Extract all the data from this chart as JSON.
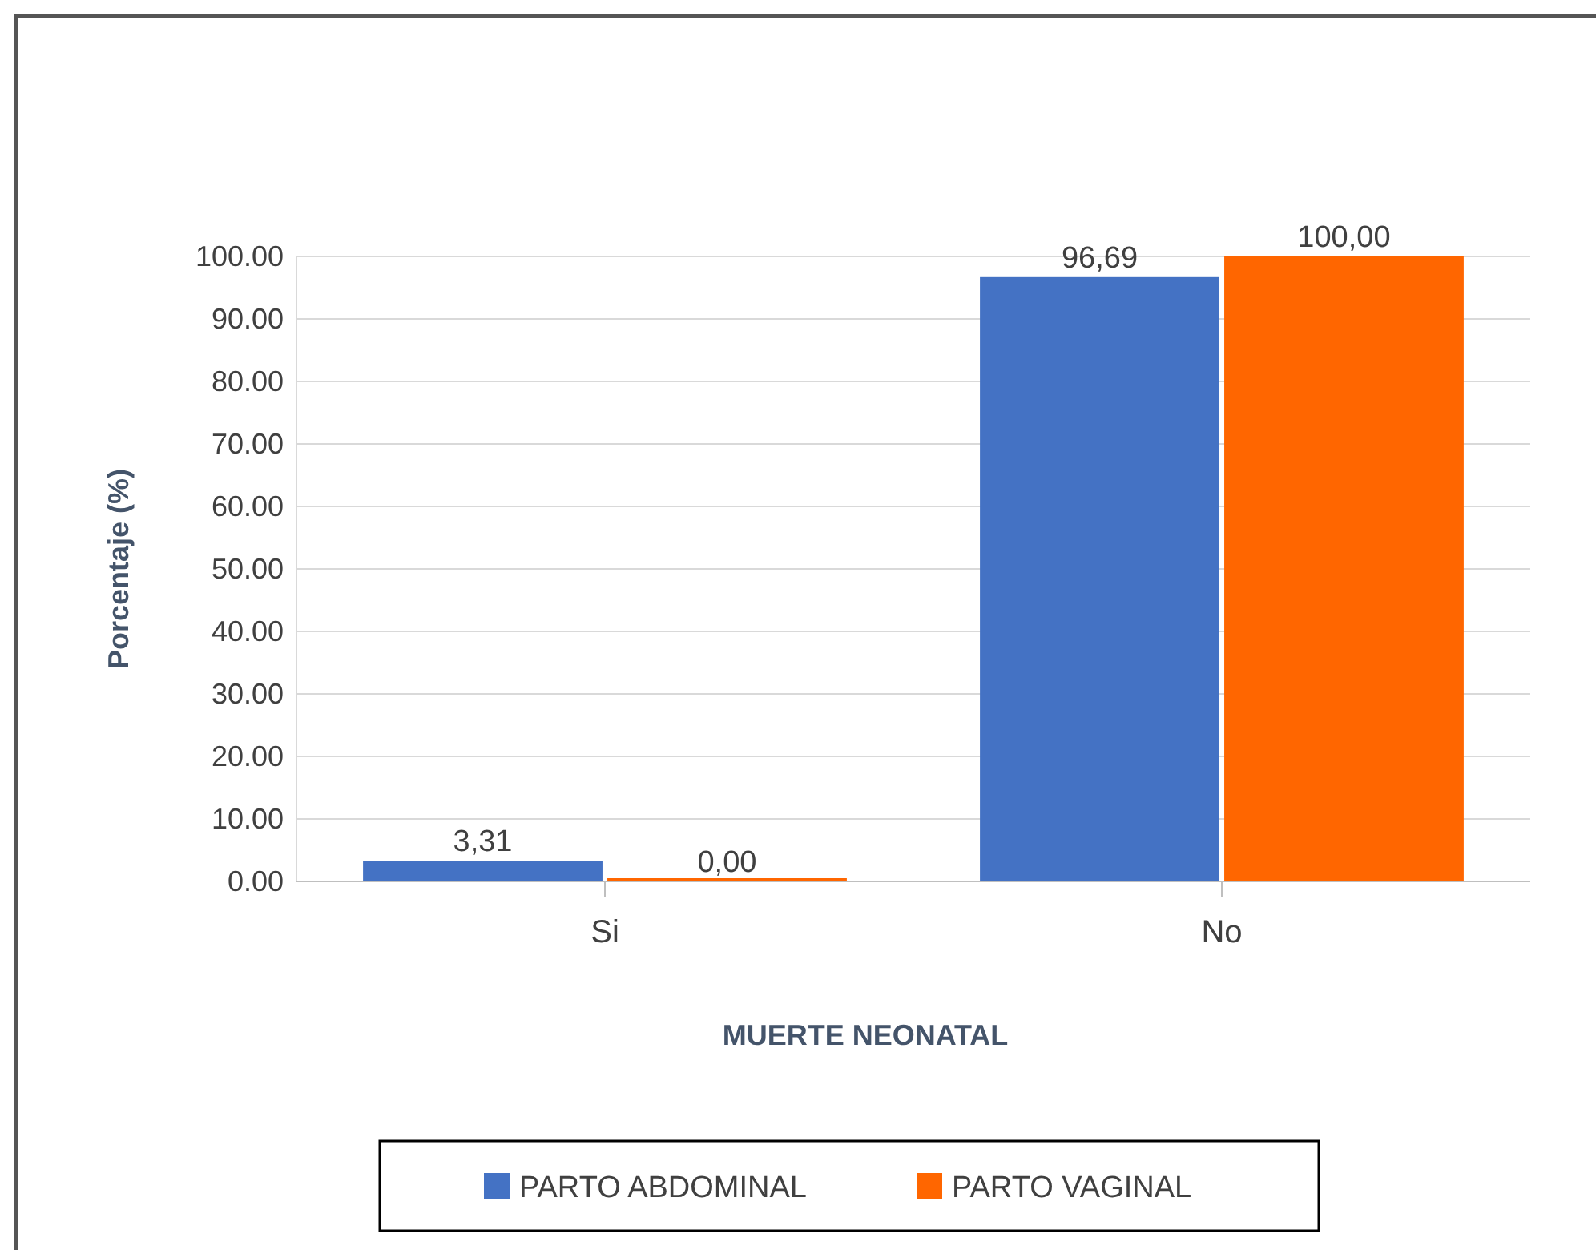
{
  "chart_data": {
    "type": "bar",
    "xlabel": "MUERTE NEONATAL",
    "ylabel": "Porcentaje (%)",
    "categories": [
      "Si",
      "No"
    ],
    "series": [
      {
        "name": "PARTO ABDOMINAL",
        "color": "#4472c4",
        "values": [
          3.31,
          96.69
        ],
        "value_labels": [
          "3,31",
          "96,69"
        ]
      },
      {
        "name": "PARTO VAGINAL",
        "color": "#ff6600",
        "values": [
          0.0,
          100.0
        ],
        "value_labels": [
          "0,00",
          "100,00"
        ]
      }
    ],
    "ylim": [
      0,
      100
    ],
    "yticks": [
      {
        "value": 0,
        "label": "0.00"
      },
      {
        "value": 10,
        "label": "10.00"
      },
      {
        "value": 20,
        "label": "20.00"
      },
      {
        "value": 30,
        "label": "30.00"
      },
      {
        "value": 40,
        "label": "40.00"
      },
      {
        "value": 50,
        "label": "50.00"
      },
      {
        "value": 60,
        "label": "60.00"
      },
      {
        "value": 70,
        "label": "70.00"
      },
      {
        "value": 80,
        "label": "80.00"
      },
      {
        "value": 90,
        "label": "90.00"
      },
      {
        "value": 100,
        "label": "100.00"
      }
    ],
    "grid": "y",
    "legend": "bottom"
  }
}
